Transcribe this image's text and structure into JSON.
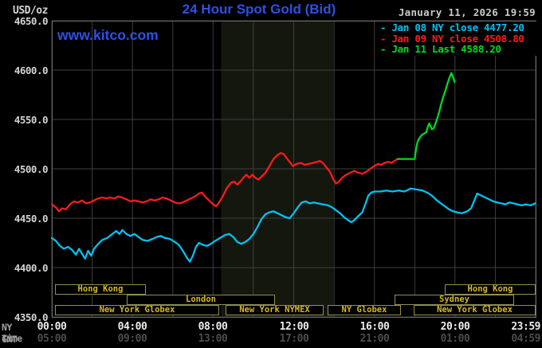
{
  "header": {
    "unit_label": "USD/oz",
    "title": "24 Hour Spot Gold (Bid)",
    "watermark": "www.kitco.com",
    "timestamp": "January 11, 2026 19:59"
  },
  "legend": {
    "items": [
      {
        "id": "jan08",
        "text": "- Jan 08 NY close 4477.20",
        "color": "#00c2f2"
      },
      {
        "id": "jan09",
        "text": "- Jan 09 NY close 4508.80",
        "color": "#fb1b1b"
      },
      {
        "id": "jan11",
        "text": "- Jan 11 Last 4588.20",
        "color": "#00d91f"
      }
    ]
  },
  "y_axis": {
    "tick_labels": [
      "4650.0",
      "4600.0",
      "4550.0",
      "4500.0",
      "4450.0",
      "4400.0",
      "4350.0"
    ],
    "tick_values": [
      4650,
      4600,
      4550,
      4500,
      4450,
      4400,
      4350
    ]
  },
  "x_axis": {
    "row1_label": "NY Time",
    "row2_label": "GMT",
    "tick_hours": [
      0,
      4,
      8,
      12,
      16,
      20,
      24
    ],
    "ny_ticks": [
      "00:00",
      "04:00",
      "08:00",
      "12:00",
      "16:00",
      "20:00",
      "23:59"
    ],
    "gmt_ticks": [
      "05:00",
      "09:00",
      "13:00",
      "17:00",
      "21:00",
      "01:00",
      "04:59"
    ]
  },
  "sessions": {
    "rows": [
      [
        {
          "label": "Hong Kong",
          "start": 0.15,
          "end": 4.65
        },
        {
          "label": "Hong Kong",
          "start": 19.5,
          "end": 24
        }
      ],
      [
        {
          "label": "London",
          "start": 3.7,
          "end": 11.05
        },
        {
          "label": "Sydney",
          "start": 17.0,
          "end": 22.95
        }
      ],
      [
        {
          "label": "New York Globex",
          "start": 0.15,
          "end": 8.3
        },
        {
          "label": "New York NYMEX",
          "start": 8.6,
          "end": 13.45
        },
        {
          "label": "NY Globex",
          "start": 13.7,
          "end": 17.35
        },
        {
          "label": "New York Globex",
          "start": 17.95,
          "end": 24
        }
      ]
    ]
  },
  "colors": {
    "background": "#000000",
    "grid": "#3f3f3f",
    "frame": "#6a6a6a",
    "shaded_band": "#14170e",
    "title_blue": "#2d50e6",
    "session_border": "#90904e",
    "session_text": "#d6b62b"
  },
  "chart_data": {
    "type": "line",
    "title": "24 Hour Spot Gold (Bid)",
    "ylabel": "USD/oz",
    "xlabel": "NY Time (hours)",
    "xlim": [
      0,
      24
    ],
    "ylim": [
      4350,
      4650
    ],
    "ytick_step": 50,
    "xtick_step_hours": 4,
    "grid": true,
    "legend_position": "top-right",
    "shaded_band_hours": [
      8.4,
      13.95
    ],
    "series": [
      {
        "name": "Jan 08 NY close 4477.20",
        "close": 4477.2,
        "color": "#00c2f2",
        "points": [
          [
            0,
            4430
          ],
          [
            0.2,
            4427
          ],
          [
            0.4,
            4422
          ],
          [
            0.6,
            4419
          ],
          [
            0.8,
            4421
          ],
          [
            1.0,
            4418
          ],
          [
            1.2,
            4413
          ],
          [
            1.35,
            4419
          ],
          [
            1.5,
            4414
          ],
          [
            1.65,
            4409
          ],
          [
            1.8,
            4417
          ],
          [
            1.95,
            4412
          ],
          [
            2.1,
            4419
          ],
          [
            2.3,
            4424
          ],
          [
            2.5,
            4428
          ],
          [
            2.75,
            4430
          ],
          [
            3.0,
            4434
          ],
          [
            3.2,
            4437
          ],
          [
            3.35,
            4434
          ],
          [
            3.5,
            4438
          ],
          [
            3.7,
            4434
          ],
          [
            3.9,
            4432
          ],
          [
            4.1,
            4434
          ],
          [
            4.3,
            4431
          ],
          [
            4.5,
            4428
          ],
          [
            4.75,
            4427
          ],
          [
            5.0,
            4429
          ],
          [
            5.2,
            4431
          ],
          [
            5.4,
            4432
          ],
          [
            5.6,
            4430
          ],
          [
            5.85,
            4429
          ],
          [
            6.1,
            4426
          ],
          [
            6.3,
            4423
          ],
          [
            6.5,
            4417
          ],
          [
            6.7,
            4410
          ],
          [
            6.85,
            4406
          ],
          [
            7.0,
            4412
          ],
          [
            7.15,
            4421
          ],
          [
            7.3,
            4425
          ],
          [
            7.5,
            4423
          ],
          [
            7.7,
            4422
          ],
          [
            7.9,
            4424
          ],
          [
            8.1,
            4427
          ],
          [
            8.35,
            4430
          ],
          [
            8.6,
            4433
          ],
          [
            8.8,
            4434
          ],
          [
            9.0,
            4431
          ],
          [
            9.2,
            4426
          ],
          [
            9.4,
            4424
          ],
          [
            9.6,
            4426
          ],
          [
            9.8,
            4429
          ],
          [
            10.0,
            4434
          ],
          [
            10.2,
            4441
          ],
          [
            10.4,
            4449
          ],
          [
            10.6,
            4454
          ],
          [
            10.8,
            4456
          ],
          [
            11.0,
            4457
          ],
          [
            11.2,
            4455
          ],
          [
            11.4,
            4453
          ],
          [
            11.6,
            4451
          ],
          [
            11.8,
            4450
          ],
          [
            12.0,
            4455
          ],
          [
            12.2,
            4461
          ],
          [
            12.4,
            4466
          ],
          [
            12.6,
            4467
          ],
          [
            12.8,
            4465
          ],
          [
            13.0,
            4466
          ],
          [
            13.2,
            4465
          ],
          [
            13.45,
            4464
          ],
          [
            13.7,
            4463
          ],
          [
            13.9,
            4461
          ],
          [
            14.1,
            4458
          ],
          [
            14.3,
            4455
          ],
          [
            14.5,
            4451
          ],
          [
            14.7,
            4448
          ],
          [
            14.85,
            4446
          ],
          [
            15.0,
            4448
          ],
          [
            15.2,
            4452
          ],
          [
            15.4,
            4456
          ],
          [
            15.55,
            4464
          ],
          [
            15.7,
            4473
          ],
          [
            15.85,
            4476
          ],
          [
            16.0,
            4477
          ],
          [
            16.3,
            4477
          ],
          [
            16.6,
            4478
          ],
          [
            16.9,
            4477
          ],
          [
            17.2,
            4478
          ],
          [
            17.5,
            4477
          ],
          [
            17.8,
            4480
          ],
          [
            18.1,
            4479
          ],
          [
            18.4,
            4478
          ],
          [
            18.7,
            4475
          ],
          [
            18.9,
            4472
          ],
          [
            19.1,
            4468
          ],
          [
            19.3,
            4465
          ],
          [
            19.5,
            4462
          ],
          [
            19.7,
            4459
          ],
          [
            19.9,
            4457
          ],
          [
            20.1,
            4456
          ],
          [
            20.35,
            4455
          ],
          [
            20.6,
            4457
          ],
          [
            20.8,
            4460
          ],
          [
            21.0,
            4470
          ],
          [
            21.1,
            4475
          ],
          [
            21.3,
            4473
          ],
          [
            21.5,
            4471
          ],
          [
            21.7,
            4469
          ],
          [
            21.9,
            4467
          ],
          [
            22.1,
            4466
          ],
          [
            22.3,
            4465
          ],
          [
            22.5,
            4464
          ],
          [
            22.7,
            4466
          ],
          [
            22.9,
            4465
          ],
          [
            23.1,
            4464
          ],
          [
            23.3,
            4463
          ],
          [
            23.5,
            4464
          ],
          [
            23.75,
            4463
          ],
          [
            23.98,
            4465
          ]
        ]
      },
      {
        "name": "Jan 09 NY close 4508.80",
        "close": 4508.8,
        "color": "#fb1b1b",
        "points": [
          [
            0,
            4464
          ],
          [
            0.2,
            4461
          ],
          [
            0.35,
            4457
          ],
          [
            0.5,
            4460
          ],
          [
            0.7,
            4459
          ],
          [
            0.9,
            4464
          ],
          [
            1.1,
            4467
          ],
          [
            1.3,
            4466
          ],
          [
            1.5,
            4468
          ],
          [
            1.7,
            4465
          ],
          [
            1.9,
            4466
          ],
          [
            2.1,
            4468
          ],
          [
            2.3,
            4470
          ],
          [
            2.5,
            4471
          ],
          [
            2.7,
            4470
          ],
          [
            2.9,
            4471
          ],
          [
            3.1,
            4470
          ],
          [
            3.3,
            4472
          ],
          [
            3.5,
            4471
          ],
          [
            3.7,
            4469
          ],
          [
            3.9,
            4467
          ],
          [
            4.1,
            4468
          ],
          [
            4.3,
            4467
          ],
          [
            4.5,
            4466
          ],
          [
            4.7,
            4467
          ],
          [
            4.9,
            4469
          ],
          [
            5.1,
            4468
          ],
          [
            5.3,
            4469
          ],
          [
            5.5,
            4471
          ],
          [
            5.7,
            4470
          ],
          [
            5.9,
            4468
          ],
          [
            6.1,
            4466
          ],
          [
            6.3,
            4465
          ],
          [
            6.5,
            4466
          ],
          [
            6.7,
            4468
          ],
          [
            6.9,
            4470
          ],
          [
            7.1,
            4472
          ],
          [
            7.3,
            4475
          ],
          [
            7.45,
            4476
          ],
          [
            7.6,
            4472
          ],
          [
            7.8,
            4468
          ],
          [
            8.0,
            4464
          ],
          [
            8.15,
            4462
          ],
          [
            8.3,
            4466
          ],
          [
            8.5,
            4473
          ],
          [
            8.7,
            4481
          ],
          [
            8.9,
            4486
          ],
          [
            9.05,
            4487
          ],
          [
            9.2,
            4484
          ],
          [
            9.35,
            4487
          ],
          [
            9.5,
            4491
          ],
          [
            9.65,
            4494
          ],
          [
            9.8,
            4491
          ],
          [
            9.95,
            4494
          ],
          [
            10.1,
            4491
          ],
          [
            10.25,
            4489
          ],
          [
            10.4,
            4492
          ],
          [
            10.6,
            4496
          ],
          [
            10.8,
            4503
          ],
          [
            11.0,
            4510
          ],
          [
            11.2,
            4514
          ],
          [
            11.35,
            4516
          ],
          [
            11.5,
            4515
          ],
          [
            11.65,
            4511
          ],
          [
            11.8,
            4507
          ],
          [
            11.95,
            4503
          ],
          [
            12.15,
            4505
          ],
          [
            12.35,
            4506
          ],
          [
            12.55,
            4504
          ],
          [
            12.75,
            4505
          ],
          [
            12.95,
            4506
          ],
          [
            13.15,
            4507
          ],
          [
            13.3,
            4508
          ],
          [
            13.45,
            4506
          ],
          [
            13.6,
            4502
          ],
          [
            13.8,
            4497
          ],
          [
            13.95,
            4490
          ],
          [
            14.1,
            4485
          ],
          [
            14.25,
            4487
          ],
          [
            14.4,
            4491
          ],
          [
            14.6,
            4494
          ],
          [
            14.8,
            4496
          ],
          [
            15.0,
            4498
          ],
          [
            15.2,
            4496
          ],
          [
            15.4,
            4495
          ],
          [
            15.6,
            4497
          ],
          [
            15.8,
            4500
          ],
          [
            16.0,
            4503
          ],
          [
            16.2,
            4505
          ],
          [
            16.35,
            4504
          ],
          [
            16.5,
            4506
          ],
          [
            16.7,
            4507
          ],
          [
            16.85,
            4506
          ],
          [
            17.0,
            4508
          ],
          [
            17.15,
            4510
          ]
        ]
      },
      {
        "name": "Jan 11 Last 4588.20",
        "last": 4588.2,
        "color": "#00d91f",
        "points": [
          [
            17.15,
            4510
          ],
          [
            17.4,
            4510
          ],
          [
            17.7,
            4510
          ],
          [
            18.0,
            4510
          ],
          [
            18.04,
            4516
          ],
          [
            18.09,
            4522
          ],
          [
            18.14,
            4527
          ],
          [
            18.2,
            4530
          ],
          [
            18.3,
            4533
          ],
          [
            18.4,
            4535
          ],
          [
            18.5,
            4536
          ],
          [
            18.58,
            4537
          ],
          [
            18.66,
            4543
          ],
          [
            18.72,
            4546
          ],
          [
            18.79,
            4543
          ],
          [
            18.86,
            4540
          ],
          [
            18.94,
            4541
          ],
          [
            19.02,
            4545
          ],
          [
            19.12,
            4551
          ],
          [
            19.22,
            4558
          ],
          [
            19.32,
            4566
          ],
          [
            19.42,
            4573
          ],
          [
            19.52,
            4579
          ],
          [
            19.62,
            4586
          ],
          [
            19.72,
            4592
          ],
          [
            19.82,
            4597
          ],
          [
            19.9,
            4593
          ],
          [
            19.98,
            4588
          ]
        ]
      }
    ]
  }
}
